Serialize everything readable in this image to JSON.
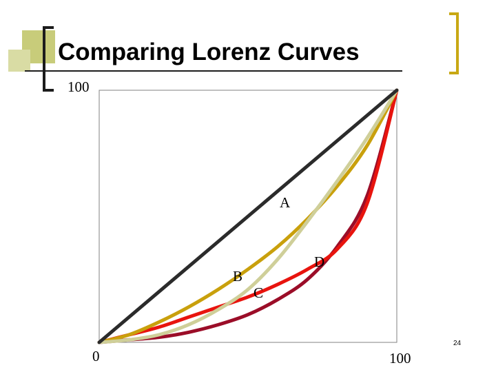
{
  "slide": {
    "title": "Comparing Lorenz Curves",
    "page_number": "24"
  },
  "colors": {
    "accent": "#c8cc7a",
    "bracket": "#1c1c1c",
    "diagonal": "#2b2b2b",
    "curve_a": "#c9a00c",
    "curve_b": "#e8140e",
    "curve_c": "#cfcf99",
    "curve_d": "#9b0d28",
    "plot_border": "#808080"
  },
  "chart_data": {
    "type": "line",
    "title": "",
    "xlabel": "",
    "ylabel": "",
    "xlim": [
      0,
      100
    ],
    "ylim": [
      0,
      100
    ],
    "x_tick_labels": [
      "0",
      "100"
    ],
    "y_tick_labels": [
      "100"
    ],
    "grid": false,
    "legend": "none",
    "series": [
      {
        "name": "",
        "color_key": "diagonal",
        "x": [
          0,
          100
        ],
        "y": [
          0,
          100
        ]
      },
      {
        "name": "A",
        "color_key": "curve_a",
        "x": [
          0,
          10,
          20,
          30,
          40,
          50,
          60,
          70,
          80,
          90,
          100
        ],
        "y": [
          0,
          3,
          8,
          14,
          21,
          29,
          38,
          49,
          62,
          78,
          100
        ]
      },
      {
        "name": "B",
        "color_key": "curve_b",
        "x": [
          0,
          10,
          20,
          30,
          40,
          50,
          60,
          70,
          80,
          90,
          100
        ],
        "y": [
          0,
          3,
          6,
          10,
          14,
          18,
          23,
          29,
          37,
          55,
          100
        ]
      },
      {
        "name": "C",
        "color_key": "curve_c",
        "x": [
          0,
          10,
          20,
          30,
          40,
          50,
          60,
          70,
          80,
          90,
          100
        ],
        "y": [
          0,
          1,
          3,
          7,
          13,
          21,
          33,
          48,
          64,
          81,
          100
        ]
      },
      {
        "name": "D",
        "color_key": "curve_d",
        "x": [
          0,
          10,
          20,
          30,
          40,
          50,
          60,
          70,
          80,
          90,
          100
        ],
        "y": [
          0,
          1,
          2,
          4,
          7,
          11,
          17,
          25,
          38,
          58,
          100
        ]
      }
    ],
    "curve_labels": [
      "A",
      "B",
      "C",
      "D"
    ]
  }
}
